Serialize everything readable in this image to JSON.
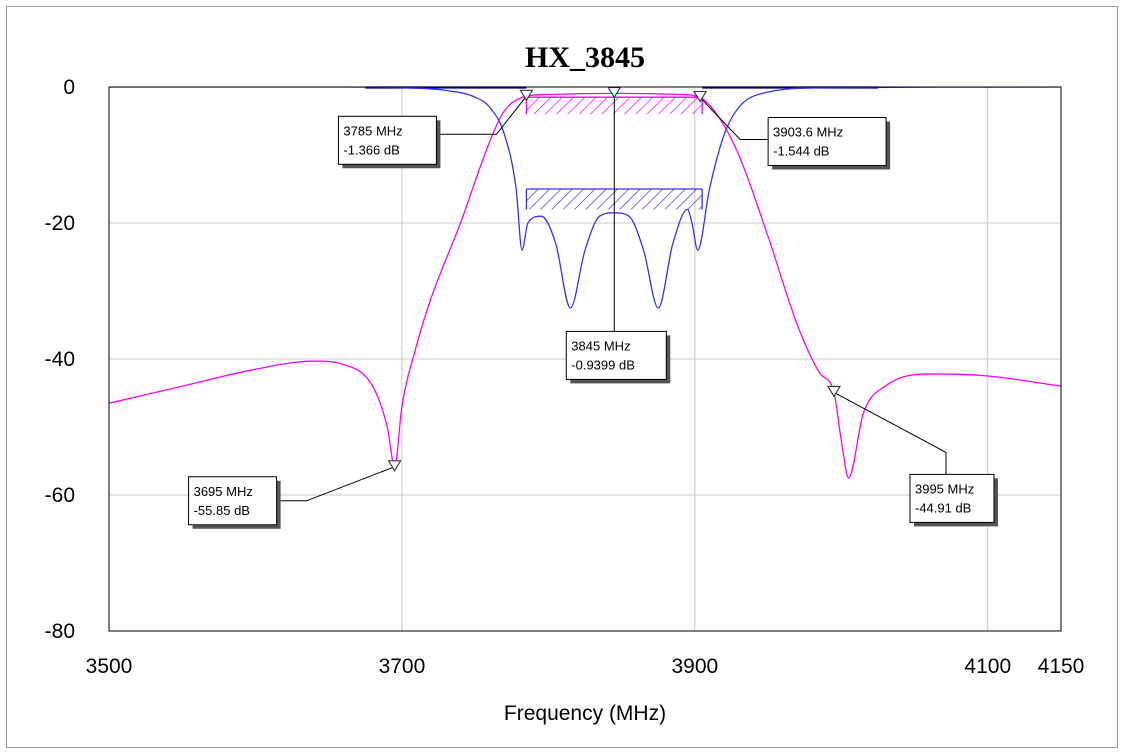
{
  "chart_data": {
    "type": "line",
    "title": "HX_3845",
    "xlabel": "Frequency (MHz)",
    "ylabel": "",
    "xlim": [
      3500,
      4150
    ],
    "ylim": [
      -80,
      0
    ],
    "xticks": [
      3500,
      3700,
      3900,
      4100,
      4150
    ],
    "yticks": [
      0,
      -20,
      -40,
      -60,
      -80
    ],
    "grid": true,
    "series": [
      {
        "color": "#ff00ff",
        "x": [
          3500,
          3550,
          3600,
          3640,
          3660,
          3680,
          3690,
          3695,
          3700,
          3710,
          3720,
          3740,
          3760,
          3770,
          3785,
          3800,
          3845,
          3890,
          3903.6,
          3915,
          3930,
          3950,
          3970,
          3985,
          3995,
          4000,
          4005,
          4015,
          4030,
          4060,
          4100,
          4150
        ],
        "y": [
          -46.5,
          -44,
          -41.5,
          -40.3,
          -40.8,
          -44,
          -50,
          -55.85,
          -47,
          -38,
          -31,
          -20,
          -8,
          -3.5,
          -1.366,
          -1.1,
          -0.9399,
          -1.1,
          -1.544,
          -4,
          -10,
          -22,
          -35,
          -42,
          -44.91,
          -52,
          -57.5,
          -48,
          -44,
          -42.2,
          -42.5,
          -44
        ]
      },
      {
        "color": "#3333ff",
        "x": [
          3500,
          3660,
          3700,
          3730,
          3750,
          3760,
          3770,
          3778,
          3782,
          3786,
          3795,
          3805,
          3815,
          3825,
          3835,
          3845,
          3855,
          3865,
          3875,
          3885,
          3895,
          3898,
          3902,
          3910,
          3920,
          3930,
          3945,
          3990,
          4150
        ],
        "y": [
          0,
          0,
          -0.1,
          -0.5,
          -1.5,
          -3,
          -7,
          -15,
          -24,
          -20,
          -19,
          -23,
          -32.5,
          -24,
          -19,
          -18.5,
          -19,
          -24,
          -32.5,
          -23,
          -18,
          -20,
          -24,
          -15,
          -7,
          -3,
          -1,
          -0.1,
          0
        ]
      }
    ],
    "markers": [
      {
        "x": 3785,
        "y": -1.366,
        "series": 0,
        "freq": "3785 MHz",
        "val": "-1.366 dB"
      },
      {
        "x": 3845,
        "y": -0.9399,
        "series": 0,
        "freq": "3845 MHz",
        "val": "-0.9399 dB"
      },
      {
        "x": 3903.6,
        "y": -1.544,
        "series": 0,
        "freq": "3903.6 MHz",
        "val": "-1.544 dB"
      },
      {
        "x": 3695,
        "y": -55.85,
        "series": 0,
        "freq": "3695 MHz",
        "val": "-55.85 dB"
      },
      {
        "x": 3995,
        "y": -44.91,
        "series": 0,
        "freq": "3995 MHz",
        "val": "-44.91 dB"
      }
    ],
    "spec_regions": [
      {
        "color": "#ff00ff",
        "x": [
          3785,
          3905
        ],
        "y": [
          -1.5,
          -4
        ]
      },
      {
        "color": "#3333ff",
        "x": [
          3785,
          3905
        ],
        "y": [
          -15,
          -18
        ]
      }
    ],
    "spec_lines": [
      {
        "color": "#00008b",
        "x": [
          3675,
          3785
        ],
        "y": 0
      },
      {
        "color": "#00008b",
        "x": [
          3905,
          4025
        ],
        "y": 0
      }
    ]
  }
}
